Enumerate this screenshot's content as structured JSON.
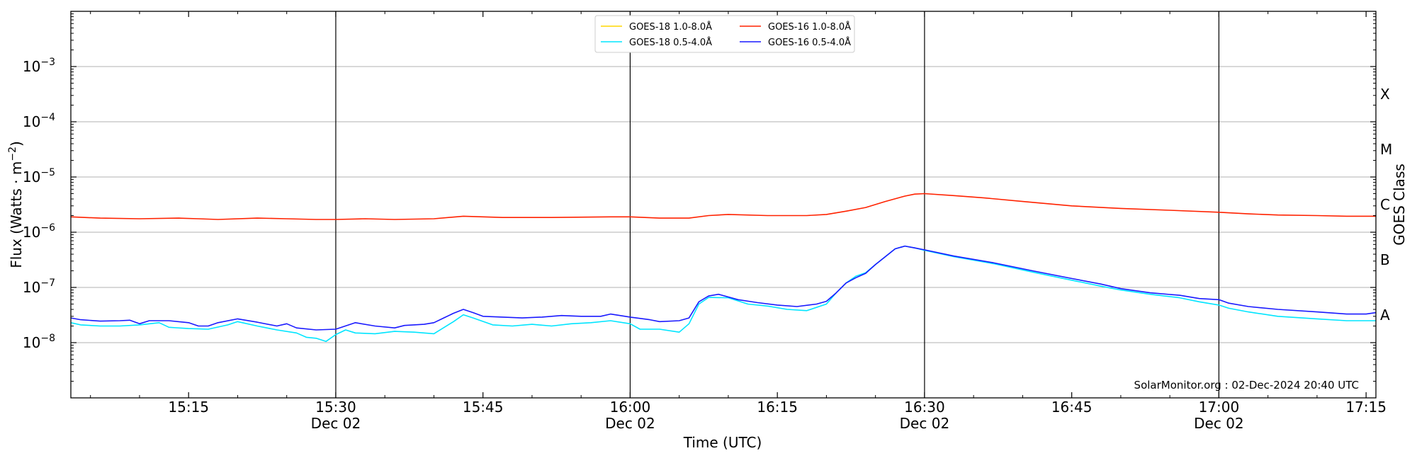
{
  "chart_data": {
    "type": "line",
    "title": "",
    "xlabel": "Time (UTC)",
    "ylabel": "Flux (Watts · m",
    "ylabel_superscript": "−2",
    "ylabel_close": ")",
    "y2label": "GOES Class",
    "yscale": "log",
    "ylim": [
      1e-09,
      0.01
    ],
    "xlim": [
      "15:03",
      "17:16"
    ],
    "grid_y": true,
    "legend_position": "top-center",
    "y_ticks": [
      {
        "value": 1e-08,
        "base": "10",
        "exp": "−8"
      },
      {
        "value": 1e-07,
        "base": "10",
        "exp": "−7"
      },
      {
        "value": 1e-06,
        "base": "10",
        "exp": "−6"
      },
      {
        "value": 1e-05,
        "base": "10",
        "exp": "−5"
      },
      {
        "value": 0.0001,
        "base": "10",
        "exp": "−4"
      },
      {
        "value": 0.001,
        "base": "10",
        "exp": "−3"
      }
    ],
    "class_labels": [
      {
        "label": "A",
        "value": 3.16e-08
      },
      {
        "label": "B",
        "value": 3.16e-07
      },
      {
        "label": "C",
        "value": 3.16e-06
      },
      {
        "label": "M",
        "value": 3.16e-05
      },
      {
        "label": "X",
        "value": 0.000316
      }
    ],
    "x_ticks": [
      {
        "time": "15:15",
        "label": "15:15",
        "date": ""
      },
      {
        "time": "15:30",
        "label": "15:30",
        "date": "Dec 02"
      },
      {
        "time": "15:45",
        "label": "15:45",
        "date": ""
      },
      {
        "time": "16:00",
        "label": "16:00",
        "date": "Dec 02"
      },
      {
        "time": "16:15",
        "label": "16:15",
        "date": ""
      },
      {
        "time": "16:30",
        "label": "16:30",
        "date": "Dec 02"
      },
      {
        "time": "16:45",
        "label": "16:45",
        "date": ""
      },
      {
        "time": "17:00",
        "label": "17:00",
        "date": "Dec 02"
      },
      {
        "time": "17:15",
        "label": "17:15",
        "date": ""
      }
    ],
    "vertical_lines": [
      "15:30",
      "16:00",
      "16:30",
      "17:00"
    ],
    "series": [
      {
        "name": "GOES-18 1.0-8.0Å",
        "color": "#ffd700",
        "points": []
      },
      {
        "name": "GOES-16 1.0-8.0Å",
        "color": "#ff2200",
        "points": [
          [
            "15:03",
            1.9e-06
          ],
          [
            "15:06",
            1.8e-06
          ],
          [
            "15:10",
            1.75e-06
          ],
          [
            "15:14",
            1.8e-06
          ],
          [
            "15:16",
            1.75e-06
          ],
          [
            "15:18",
            1.7e-06
          ],
          [
            "15:22",
            1.8e-06
          ],
          [
            "15:25",
            1.75e-06
          ],
          [
            "15:28",
            1.7e-06
          ],
          [
            "15:30",
            1.7e-06
          ],
          [
            "15:33",
            1.75e-06
          ],
          [
            "15:36",
            1.7e-06
          ],
          [
            "15:40",
            1.75e-06
          ],
          [
            "15:43",
            1.95e-06
          ],
          [
            "15:47",
            1.85e-06
          ],
          [
            "15:52",
            1.85e-06
          ],
          [
            "15:58",
            1.9e-06
          ],
          [
            "16:00",
            1.9e-06
          ],
          [
            "16:03",
            1.8e-06
          ],
          [
            "16:06",
            1.8e-06
          ],
          [
            "16:08",
            2e-06
          ],
          [
            "16:10",
            2.1e-06
          ],
          [
            "16:14",
            2e-06
          ],
          [
            "16:18",
            2e-06
          ],
          [
            "16:20",
            2.1e-06
          ],
          [
            "16:22",
            2.4e-06
          ],
          [
            "16:24",
            2.8e-06
          ],
          [
            "16:26",
            3.6e-06
          ],
          [
            "16:28",
            4.5e-06
          ],
          [
            "16:29",
            4.9e-06
          ],
          [
            "16:30",
            5e-06
          ],
          [
            "16:33",
            4.6e-06
          ],
          [
            "16:36",
            4.2e-06
          ],
          [
            "16:40",
            3.6e-06
          ],
          [
            "16:45",
            3e-06
          ],
          [
            "16:50",
            2.7e-06
          ],
          [
            "16:55",
            2.5e-06
          ],
          [
            "17:00",
            2.3e-06
          ],
          [
            "17:03",
            2.15e-06
          ],
          [
            "17:06",
            2.05e-06
          ],
          [
            "17:10",
            2e-06
          ],
          [
            "17:13",
            1.95e-06
          ],
          [
            "17:16",
            1.95e-06
          ]
        ]
      },
      {
        "name": "GOES-18 0.5-4.0Å",
        "color": "#00e5ff",
        "points": [
          [
            "15:03",
            2.3e-08
          ],
          [
            "15:04",
            2.1e-08
          ],
          [
            "15:06",
            2e-08
          ],
          [
            "15:08",
            2e-08
          ],
          [
            "15:10",
            2.1e-08
          ],
          [
            "15:12",
            2.3e-08
          ],
          [
            "15:13",
            1.9e-08
          ],
          [
            "15:15",
            1.8e-08
          ],
          [
            "15:17",
            1.75e-08
          ],
          [
            "15:19",
            2.1e-08
          ],
          [
            "15:20",
            2.4e-08
          ],
          [
            "15:22",
            2e-08
          ],
          [
            "15:24",
            1.7e-08
          ],
          [
            "15:26",
            1.5e-08
          ],
          [
            "15:27",
            1.25e-08
          ],
          [
            "15:28",
            1.2e-08
          ],
          [
            "15:29",
            1.05e-08
          ],
          [
            "15:30",
            1.4e-08
          ],
          [
            "15:31",
            1.7e-08
          ],
          [
            "15:32",
            1.5e-08
          ],
          [
            "15:34",
            1.45e-08
          ],
          [
            "15:36",
            1.6e-08
          ],
          [
            "15:38",
            1.55e-08
          ],
          [
            "15:40",
            1.45e-08
          ],
          [
            "15:42",
            2.4e-08
          ],
          [
            "15:43",
            3.2e-08
          ],
          [
            "15:44",
            2.8e-08
          ],
          [
            "15:46",
            2.1e-08
          ],
          [
            "15:48",
            2e-08
          ],
          [
            "15:50",
            2.15e-08
          ],
          [
            "15:52",
            2e-08
          ],
          [
            "15:54",
            2.2e-08
          ],
          [
            "15:56",
            2.3e-08
          ],
          [
            "15:58",
            2.5e-08
          ],
          [
            "16:00",
            2.2e-08
          ],
          [
            "16:01",
            1.75e-08
          ],
          [
            "16:03",
            1.75e-08
          ],
          [
            "16:05",
            1.55e-08
          ],
          [
            "16:06",
            2.2e-08
          ],
          [
            "16:07",
            5e-08
          ],
          [
            "16:08",
            6.6e-08
          ],
          [
            "16:10",
            6.5e-08
          ],
          [
            "16:12",
            5e-08
          ],
          [
            "16:14",
            4.6e-08
          ],
          [
            "16:16",
            4e-08
          ],
          [
            "16:18",
            3.8e-08
          ],
          [
            "16:20",
            5e-08
          ],
          [
            "16:21",
            8e-08
          ],
          [
            "16:22",
            1.2e-07
          ],
          [
            "16:23",
            1.6e-07
          ],
          [
            "16:24",
            1.85e-07
          ],
          [
            "16:25",
            2.6e-07
          ],
          [
            "16:26",
            3.6e-07
          ],
          [
            "16:27",
            5e-07
          ],
          [
            "16:28",
            5.6e-07
          ],
          [
            "16:29",
            5.2e-07
          ],
          [
            "16:30",
            4.7e-07
          ],
          [
            "16:33",
            3.6e-07
          ],
          [
            "16:37",
            2.7e-07
          ],
          [
            "16:41",
            1.9e-07
          ],
          [
            "16:45",
            1.35e-07
          ],
          [
            "16:48",
            1.05e-07
          ],
          [
            "16:50",
            9e-08
          ],
          [
            "16:53",
            7.5e-08
          ],
          [
            "16:56",
            6.5e-08
          ],
          [
            "16:58",
            5.5e-08
          ],
          [
            "17:00",
            4.8e-08
          ],
          [
            "17:01",
            4.2e-08
          ],
          [
            "17:03",
            3.6e-08
          ],
          [
            "17:06",
            3e-08
          ],
          [
            "17:10",
            2.7e-08
          ],
          [
            "17:13",
            2.5e-08
          ],
          [
            "17:16",
            2.5e-08
          ]
        ]
      },
      {
        "name": "GOES-16 0.5-4.0Å",
        "color": "#1a1aff",
        "points": [
          [
            "15:03",
            2.8e-08
          ],
          [
            "15:04",
            2.6e-08
          ],
          [
            "15:06",
            2.45e-08
          ],
          [
            "15:08",
            2.5e-08
          ],
          [
            "15:09",
            2.55e-08
          ],
          [
            "15:10",
            2.2e-08
          ],
          [
            "15:11",
            2.5e-08
          ],
          [
            "15:13",
            2.5e-08
          ],
          [
            "15:15",
            2.3e-08
          ],
          [
            "15:16",
            2e-08
          ],
          [
            "15:17",
            2e-08
          ],
          [
            "15:18",
            2.3e-08
          ],
          [
            "15:20",
            2.7e-08
          ],
          [
            "15:22",
            2.35e-08
          ],
          [
            "15:24",
            2e-08
          ],
          [
            "15:25",
            2.2e-08
          ],
          [
            "15:26",
            1.85e-08
          ],
          [
            "15:28",
            1.7e-08
          ],
          [
            "15:30",
            1.75e-08
          ],
          [
            "15:32",
            2.3e-08
          ],
          [
            "15:34",
            2e-08
          ],
          [
            "15:36",
            1.85e-08
          ],
          [
            "15:37",
            2.05e-08
          ],
          [
            "15:39",
            2.15e-08
          ],
          [
            "15:40",
            2.3e-08
          ],
          [
            "15:41",
            2.8e-08
          ],
          [
            "15:42",
            3.4e-08
          ],
          [
            "15:43",
            4e-08
          ],
          [
            "15:44",
            3.5e-08
          ],
          [
            "15:45",
            3e-08
          ],
          [
            "15:47",
            2.9e-08
          ],
          [
            "15:49",
            2.8e-08
          ],
          [
            "15:51",
            2.9e-08
          ],
          [
            "15:53",
            3.1e-08
          ],
          [
            "15:55",
            3e-08
          ],
          [
            "15:57",
            3e-08
          ],
          [
            "15:58",
            3.3e-08
          ],
          [
            "16:00",
            2.9e-08
          ],
          [
            "16:02",
            2.6e-08
          ],
          [
            "16:03",
            2.4e-08
          ],
          [
            "16:05",
            2.5e-08
          ],
          [
            "16:06",
            2.8e-08
          ],
          [
            "16:07",
            5.5e-08
          ],
          [
            "16:08",
            7e-08
          ],
          [
            "16:09",
            7.5e-08
          ],
          [
            "16:11",
            6e-08
          ],
          [
            "16:13",
            5.3e-08
          ],
          [
            "16:15",
            4.8e-08
          ],
          [
            "16:17",
            4.5e-08
          ],
          [
            "16:19",
            5e-08
          ],
          [
            "16:20",
            5.6e-08
          ],
          [
            "16:21",
            8e-08
          ],
          [
            "16:22",
            1.2e-07
          ],
          [
            "16:23",
            1.5e-07
          ],
          [
            "16:24",
            1.8e-07
          ],
          [
            "16:25",
            2.6e-07
          ],
          [
            "16:26",
            3.6e-07
          ],
          [
            "16:27",
            5e-07
          ],
          [
            "16:28",
            5.6e-07
          ],
          [
            "16:29",
            5.2e-07
          ],
          [
            "16:30",
            4.8e-07
          ],
          [
            "16:33",
            3.7e-07
          ],
          [
            "16:37",
            2.8e-07
          ],
          [
            "16:41",
            2e-07
          ],
          [
            "16:45",
            1.45e-07
          ],
          [
            "16:48",
            1.15e-07
          ],
          [
            "16:50",
            9.5e-08
          ],
          [
            "16:53",
            8e-08
          ],
          [
            "16:56",
            7.2e-08
          ],
          [
            "16:58",
            6.3e-08
          ],
          [
            "17:00",
            6e-08
          ],
          [
            "17:01",
            5.2e-08
          ],
          [
            "17:03",
            4.5e-08
          ],
          [
            "17:06",
            4e-08
          ],
          [
            "17:10",
            3.6e-08
          ],
          [
            "17:13",
            3.3e-08
          ],
          [
            "17:15",
            3.3e-08
          ],
          [
            "17:16",
            3.5e-08
          ]
        ]
      }
    ],
    "legend": {
      "entries": [
        {
          "name": "GOES-18 1.0-8.0Å",
          "color": "#ffd700"
        },
        {
          "name": "GOES-18 0.5-4.0Å",
          "color": "#00e5ff"
        },
        {
          "name": "GOES-16 1.0-8.0Å",
          "color": "#ff2200"
        },
        {
          "name": "GOES-16 0.5-4.0Å",
          "color": "#1a1aff"
        }
      ]
    },
    "footer": "SolarMonitor.org : 02-Dec-2024 20:40 UTC"
  }
}
